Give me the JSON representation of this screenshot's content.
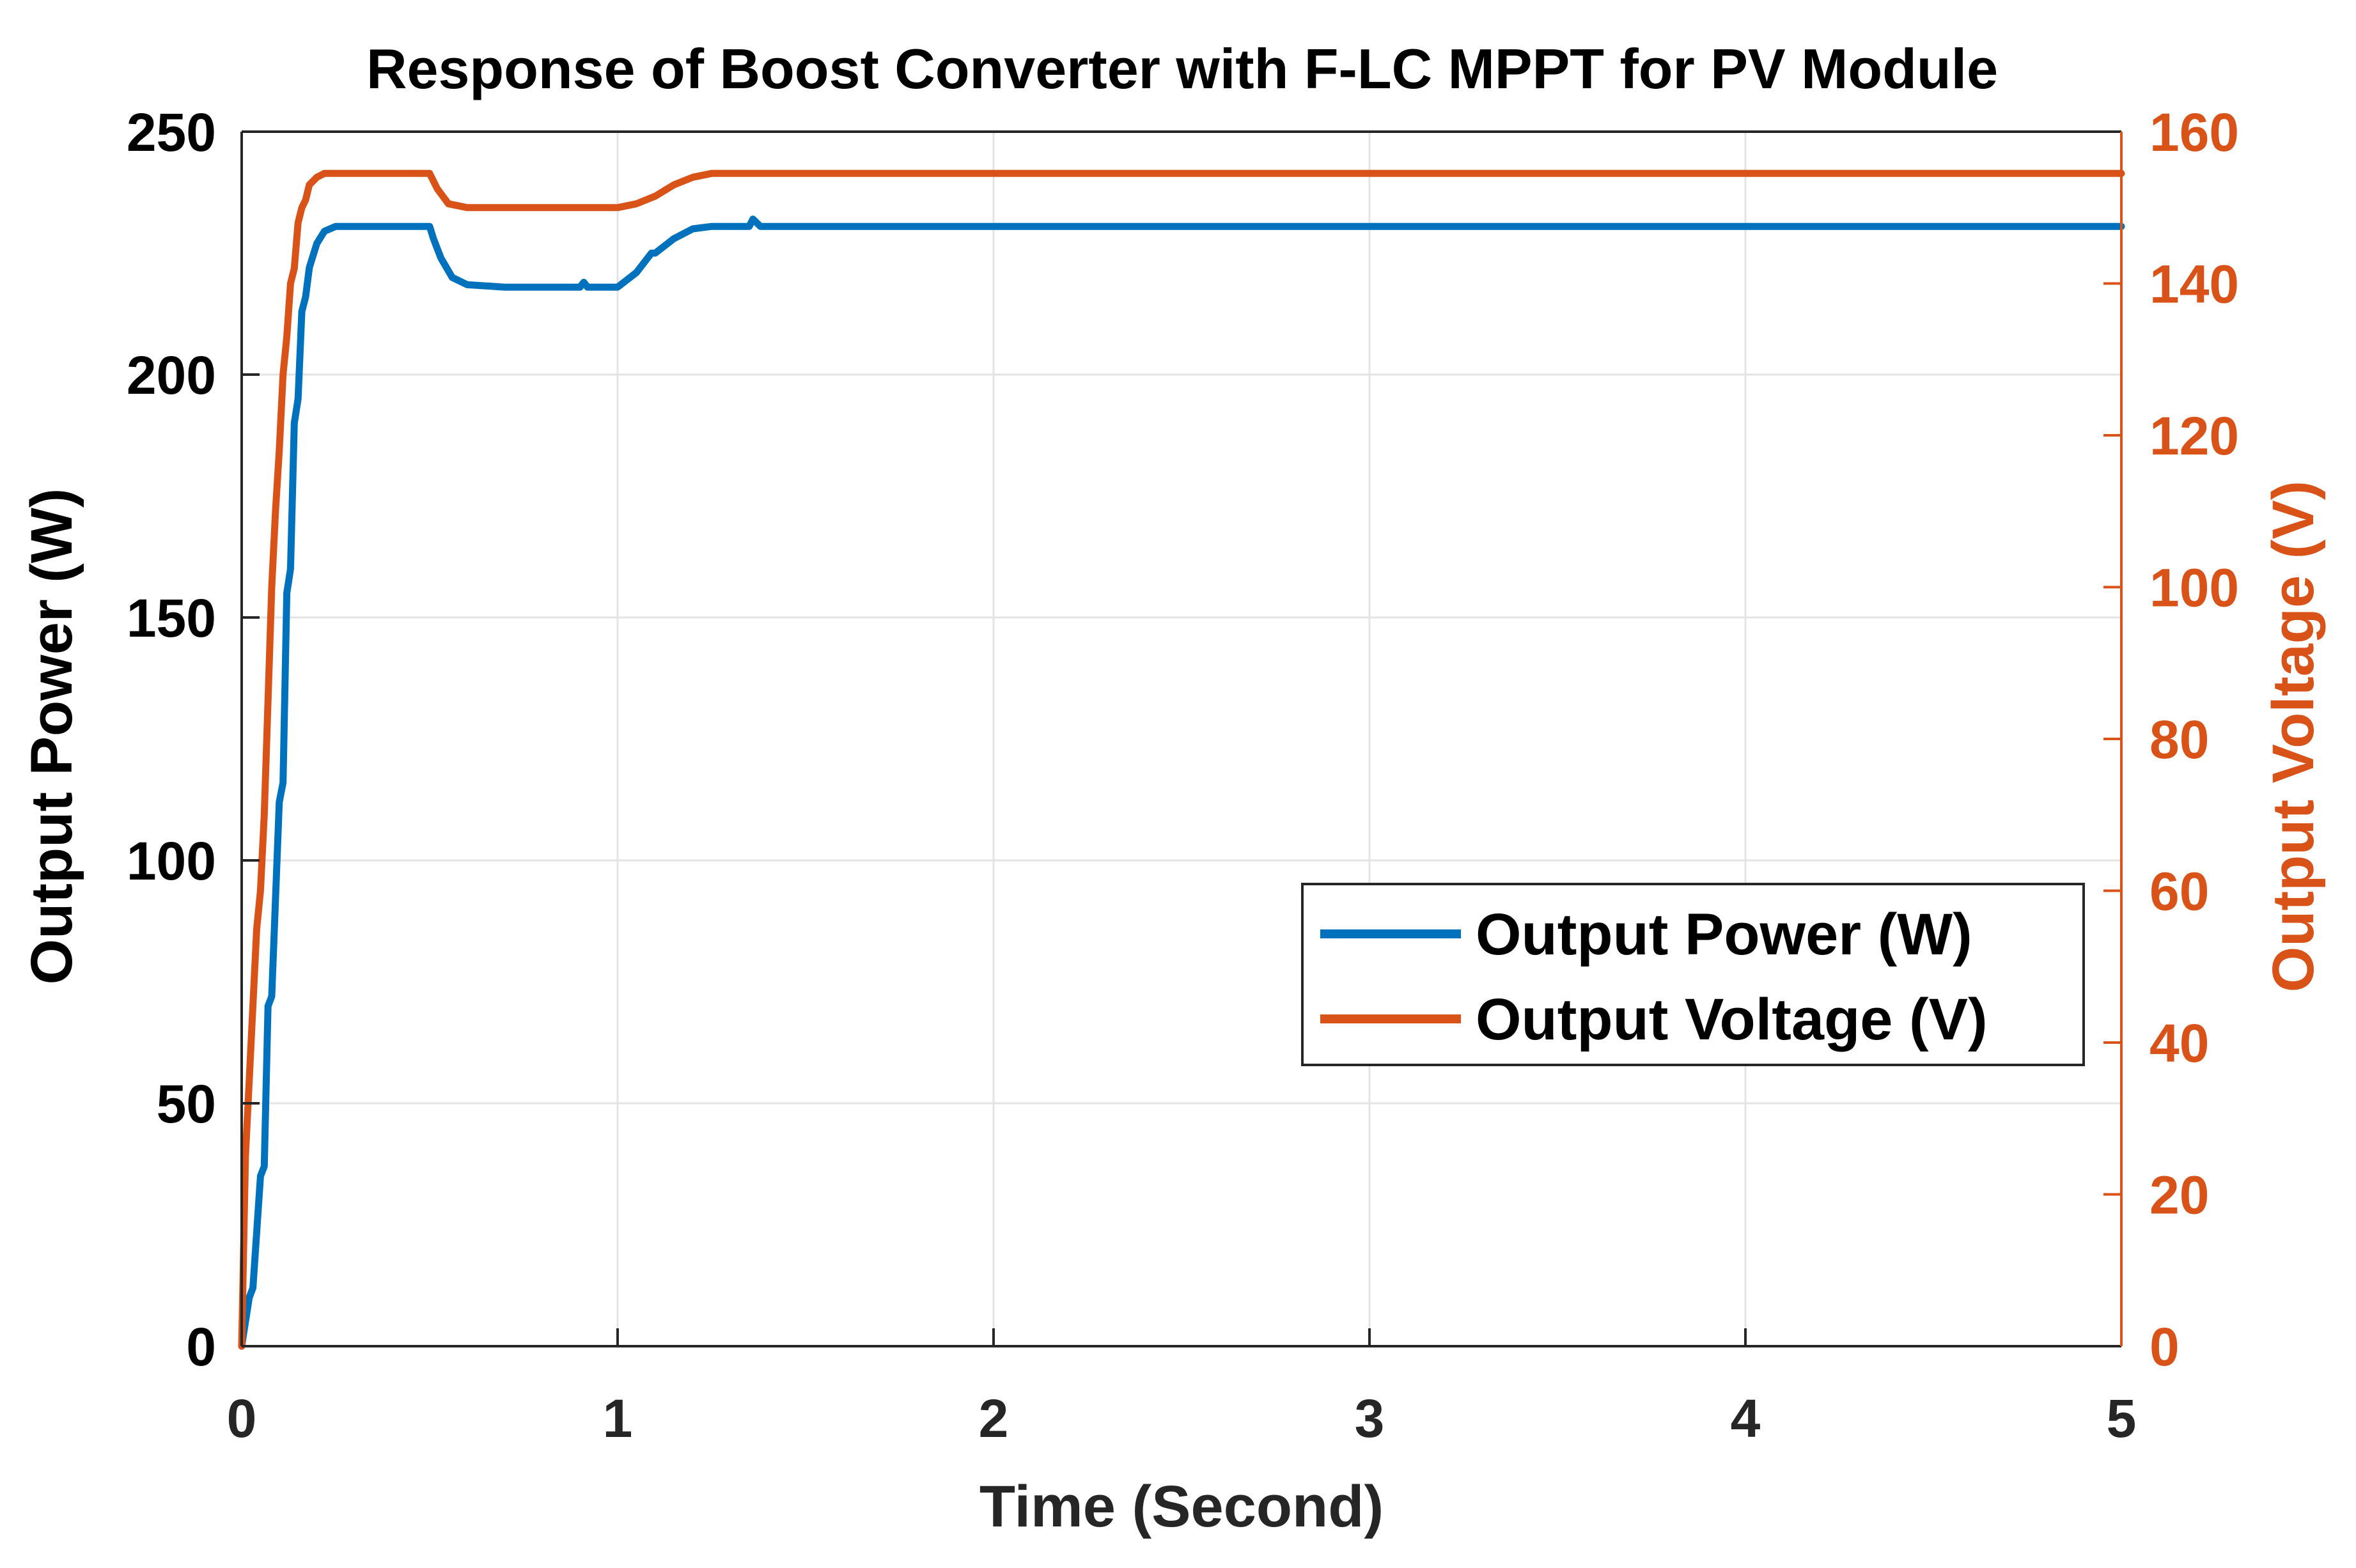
{
  "chart_data": {
    "type": "line",
    "title": "Response of Boost Converter with F-LC MPPT for PV Module",
    "xlabel": "Time (Second)",
    "ylabel_left": "Output Power (W)",
    "ylabel_right": "Output Voltage (V)",
    "xlim": [
      0,
      5
    ],
    "ylim_left": [
      0,
      250
    ],
    "ylim_right": [
      0,
      160
    ],
    "xticks": [
      "0",
      "1",
      "2",
      "3",
      "4",
      "5"
    ],
    "yticks_left": [
      "0",
      "50",
      "100",
      "150",
      "200",
      "250"
    ],
    "yticks_right": [
      "0",
      "20",
      "40",
      "60",
      "80",
      "100",
      "120",
      "140",
      "160"
    ],
    "grid": true,
    "legend_position": "center-right",
    "series": [
      {
        "name": "Output Power (W)",
        "axis": "left",
        "color": "#0072BD",
        "x": [
          0,
          0.02,
          0.03,
          0.05,
          0.06,
          0.07,
          0.08,
          0.1,
          0.11,
          0.12,
          0.13,
          0.14,
          0.15,
          0.16,
          0.17,
          0.18,
          0.2,
          0.22,
          0.25,
          0.3,
          0.4,
          0.5,
          0.51,
          0.53,
          0.56,
          0.6,
          0.7,
          0.9,
          0.91,
          0.92,
          1.0,
          1.05,
          1.08,
          1.09,
          1.1,
          1.15,
          1.2,
          1.25,
          1.3,
          1.35,
          1.36,
          1.38,
          1.4,
          2,
          3,
          4,
          5
        ],
        "y": [
          0,
          10,
          12,
          35,
          37,
          70,
          72,
          112,
          116,
          155,
          160,
          190,
          195,
          213,
          216,
          222,
          227,
          229.5,
          230.5,
          230.5,
          230.5,
          230.5,
          228,
          224,
          220,
          218.5,
          218,
          218,
          219,
          218,
          218,
          221,
          224,
          225,
          225,
          228,
          230,
          230.5,
          230.5,
          230.5,
          232,
          230.5,
          230.5,
          230.5,
          230.5,
          230.5,
          230.5
        ]
      },
      {
        "name": "Output Voltage (V)",
        "axis": "right",
        "color": "#D95319",
        "x": [
          0,
          0.01,
          0.02,
          0.04,
          0.05,
          0.06,
          0.07,
          0.08,
          0.09,
          0.1,
          0.11,
          0.12,
          0.13,
          0.14,
          0.15,
          0.16,
          0.17,
          0.18,
          0.2,
          0.22,
          0.25,
          0.3,
          0.4,
          0.5,
          0.52,
          0.55,
          0.6,
          0.7,
          0.8,
          0.9,
          1.0,
          1.05,
          1.1,
          1.15,
          1.2,
          1.25,
          1.3,
          2,
          3,
          4,
          5
        ],
        "y": [
          0,
          25,
          35,
          55,
          60,
          70,
          85,
          100,
          110,
          118,
          128,
          133,
          140,
          142,
          148,
          150,
          151,
          153,
          154,
          154.5,
          154.5,
          154.5,
          154.5,
          154.5,
          152.5,
          150.5,
          150,
          150,
          150,
          150,
          150,
          150.5,
          151.5,
          153,
          154,
          154.5,
          154.5,
          154.5,
          154.5,
          154.5,
          154.5
        ]
      }
    ]
  }
}
